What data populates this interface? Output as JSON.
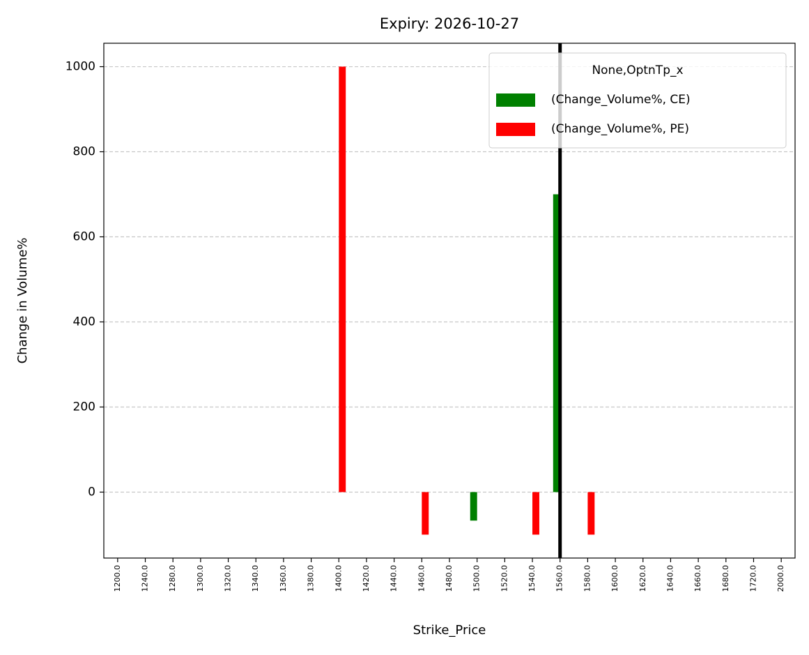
{
  "chart_data": {
    "type": "bar",
    "title": "Expiry: 2026-10-27",
    "x_label": "Strike_Price",
    "y_label": "Change in Volume%",
    "categories": [
      "1200.0",
      "1240.0",
      "1280.0",
      "1300.0",
      "1320.0",
      "1340.0",
      "1360.0",
      "1380.0",
      "1400.0",
      "1420.0",
      "1440.0",
      "1460.0",
      "1480.0",
      "1500.0",
      "1520.0",
      "1540.0",
      "1560.0",
      "1580.0",
      "1600.0",
      "1620.0",
      "1640.0",
      "1660.0",
      "1680.0",
      "1720.0",
      "2000.0"
    ],
    "series": [
      {
        "name": "(Change_Volume%, CE)",
        "color": "#008000",
        "values": [
          null,
          null,
          null,
          null,
          null,
          null,
          null,
          null,
          null,
          null,
          null,
          null,
          null,
          -67,
          null,
          null,
          700,
          null,
          null,
          null,
          null,
          null,
          null,
          null,
          null
        ]
      },
      {
        "name": "(Change_Volume%, PE)",
        "color": "#ff0000",
        "values": [
          null,
          null,
          null,
          null,
          null,
          null,
          null,
          null,
          1000,
          null,
          null,
          -100,
          null,
          null,
          null,
          -100,
          null,
          -100,
          null,
          null,
          null,
          null,
          null,
          null,
          null
        ]
      }
    ],
    "legend_title": "None,OptnTp_x",
    "legend": "upper right",
    "vline": "1560.0",
    "ylim": [
      -155,
      1055
    ],
    "yticks": [
      0,
      200,
      400,
      600,
      800,
      1000
    ],
    "grid": true
  }
}
